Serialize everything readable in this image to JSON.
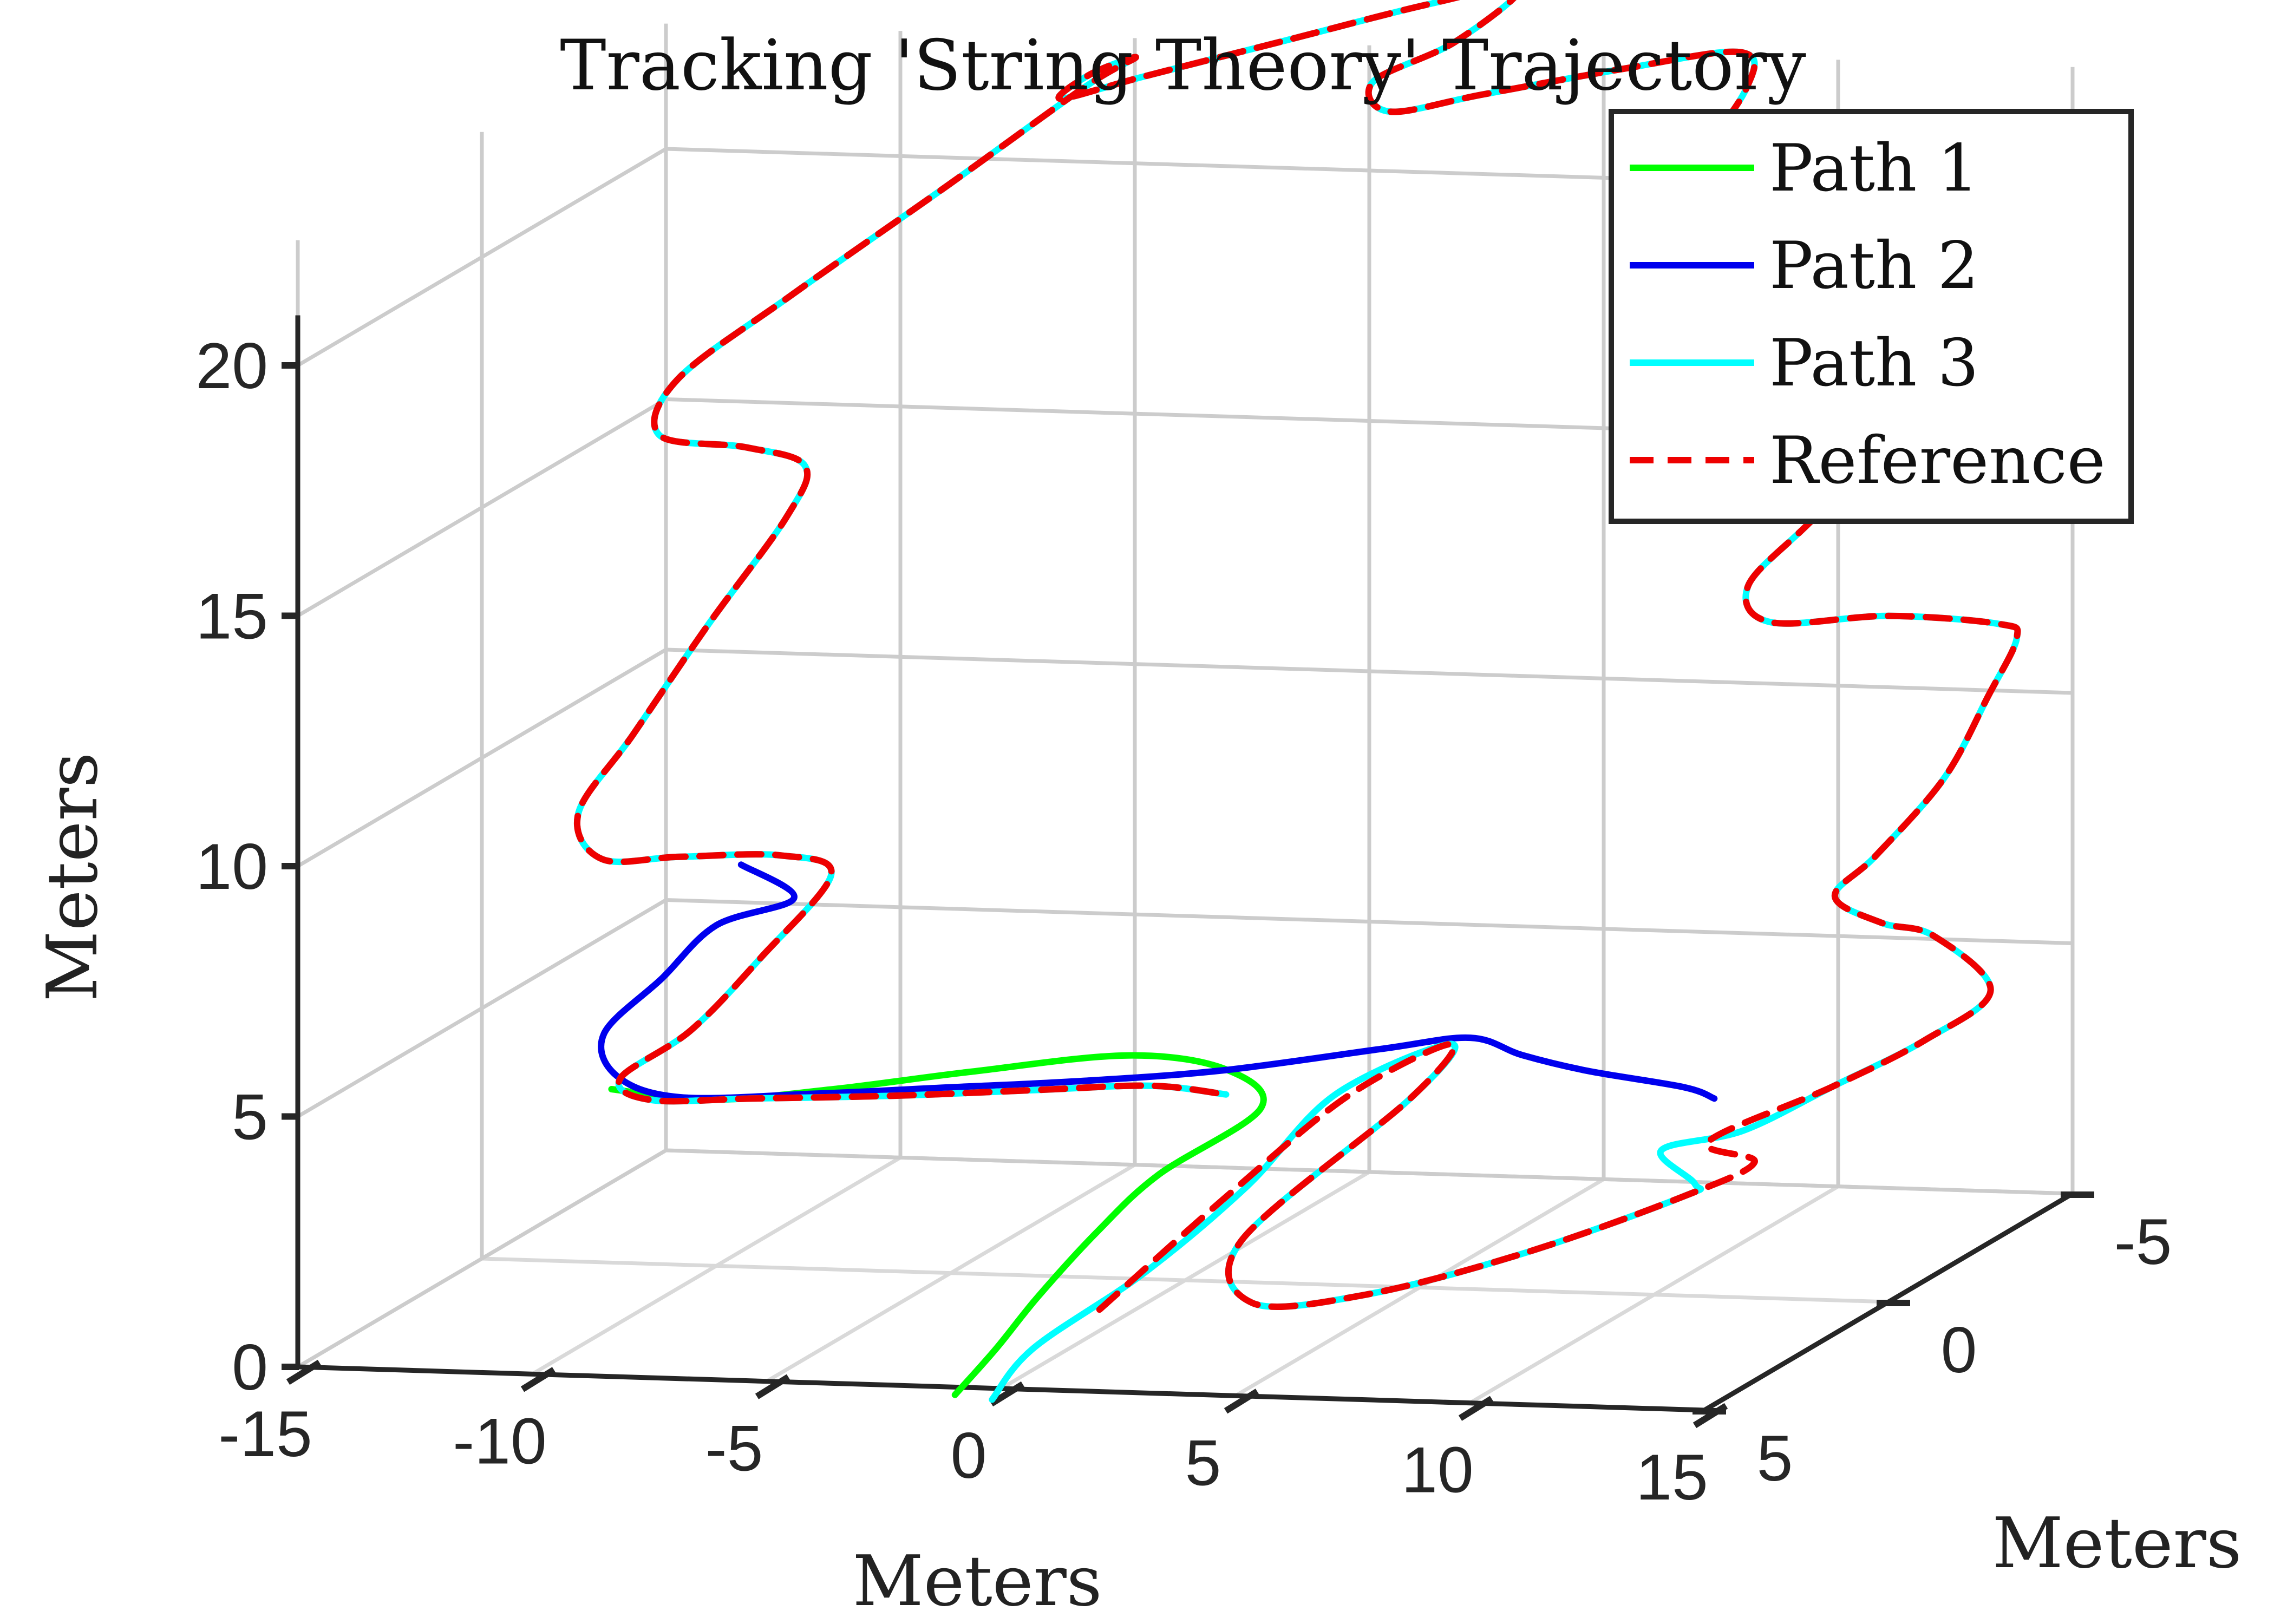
{
  "chart_data": {
    "type": "line",
    "projection": "3d",
    "title": "Tracking 'String Theory' Trajectory",
    "xlabel": "Meters",
    "ylabel": "Meters",
    "zlabel": "Meters",
    "xlim": [
      -15,
      15
    ],
    "ylim": [
      -5,
      5
    ],
    "zlim": [
      0,
      20
    ],
    "x_ticks": [
      -15,
      -10,
      -5,
      0,
      5,
      10,
      15
    ],
    "y_ticks": [
      -5,
      0,
      5
    ],
    "z_ticks": [
      0,
      5,
      10,
      15,
      20
    ],
    "x_tick_labels": [
      "-15",
      "-10",
      "-5",
      "0",
      "5",
      "10",
      "15"
    ],
    "y_tick_labels": [
      "-5",
      "0",
      "5"
    ],
    "z_tick_labels": [
      "0",
      "5",
      "10",
      "15",
      "20"
    ],
    "grid": true,
    "legend_position": "top-right",
    "series": [
      {
        "name": "Path 1",
        "color": "#00ff00",
        "dash": "solid",
        "points": [
          [
            -0.2,
            6,
            0.3
          ],
          [
            -0.1,
            5,
            0.8
          ],
          [
            0,
            4,
            1.4
          ],
          [
            0.5,
            3,
            2.3
          ],
          [
            1,
            2,
            3.0
          ],
          [
            2,
            0.5,
            3.7
          ],
          [
            0.5,
            -0.5,
            4.0
          ],
          [
            -2,
            -1,
            4.0
          ],
          [
            -5,
            -0.5,
            3.8
          ],
          [
            -7.5,
            0,
            3.6
          ],
          [
            -10,
            0.2,
            3.4
          ],
          [
            -12,
            0.3,
            3.6
          ]
        ]
      },
      {
        "name": "Path 2",
        "color": "#0000ee",
        "dash": "solid",
        "points": [
          [
            10.5,
            -1,
            3.5
          ],
          [
            10,
            -0.8,
            3.8
          ],
          [
            8.2,
            -0.5,
            4.2
          ],
          [
            7.2,
            0,
            4.7
          ],
          [
            6.4,
            0.4,
            5.2
          ],
          [
            5,
            1,
            5.2
          ],
          [
            2,
            1.5,
            4.9
          ],
          [
            -1,
            1.5,
            4.6
          ],
          [
            -4,
            1.3,
            4.3
          ],
          [
            -7,
            1.1,
            4.0
          ],
          [
            -10,
            1,
            3.8
          ],
          [
            -11.5,
            0.8,
            4.1
          ],
          [
            -12,
            0.5,
            4.8
          ],
          [
            -11,
            0.2,
            5.8
          ],
          [
            -10,
            0,
            6.8
          ],
          [
            -8.5,
            -0.2,
            7.3
          ],
          [
            -9,
            0.6,
            8.3
          ]
        ]
      },
      {
        "name": "Path 3",
        "color": "#00ffff",
        "dash": "solid",
        "points": [
          [
            0.2,
            5.5,
            0
          ],
          [
            0.3,
            4.5,
            0.6
          ],
          [
            1.5,
            3,
            1.5
          ],
          [
            2.5,
            1.5,
            2.6
          ],
          [
            3.2,
            0,
            3.8
          ],
          [
            4.5,
            -1.5,
            4.2
          ],
          [
            4,
            -1,
            3.3
          ],
          [
            2,
            1,
            1.3
          ],
          [
            3,
            2,
            0.5
          ],
          [
            5,
            1.5,
            0.5
          ],
          [
            8,
            1,
            1.2
          ],
          [
            11,
            0.5,
            2.2
          ],
          [
            11.5,
            0.8,
            2.6
          ],
          [
            10,
            -0.2,
            2.8
          ],
          [
            11.5,
            -0.5,
            3.1
          ],
          [
            13,
            -1,
            3.8
          ],
          [
            15,
            -1,
            4.8
          ],
          [
            16,
            -1.5,
            5.6
          ],
          [
            14,
            -2.5,
            6.2
          ],
          [
            12.5,
            -3,
            6.2
          ],
          [
            11.5,
            -3,
            6.7
          ],
          [
            13,
            -2.2,
            7.9
          ],
          [
            15,
            -1.5,
            9.8
          ],
          [
            16.5,
            -0.8,
            11.8
          ],
          [
            17.5,
            -0.3,
            13.2
          ],
          [
            17.5,
            0.2,
            13.7
          ],
          [
            15,
            0,
            13.7
          ],
          [
            12.5,
            0,
            13.5
          ],
          [
            12,
            0,
            14.2
          ],
          [
            13,
            -0.3,
            15.3
          ],
          [
            14.5,
            -0.8,
            16.8
          ],
          [
            15.5,
            -1.2,
            18.2
          ],
          [
            15,
            -1.5,
            19.4
          ],
          [
            13,
            -1.5,
            19.8
          ],
          [
            9.5,
            -1.5,
            19.7
          ],
          [
            8,
            -1.8,
            20.2
          ],
          [
            9,
            -2.2,
            21.5
          ],
          [
            10,
            -2.5,
            23.0
          ],
          [
            9.5,
            -3,
            23.5
          ],
          [
            7,
            -3,
            23.1
          ],
          [
            4,
            -3,
            22.5
          ],
          [
            2,
            -3,
            22.1
          ],
          [
            1.5,
            -3.2,
            22.6
          ],
          [
            3,
            -3.5,
            23.3
          ],
          [
            4,
            -4,
            24.2
          ],
          [
            2,
            -4,
            23.8
          ],
          [
            -1,
            -4,
            23.0
          ],
          [
            -4,
            -4,
            22.2
          ],
          [
            -5.8,
            -4,
            21.7
          ],
          [
            -5,
            -3.8,
            22.3
          ],
          [
            -3.8,
            -3.5,
            22.8
          ],
          [
            -4.5,
            -3,
            22.4
          ],
          [
            -7,
            -2.5,
            20.6
          ],
          [
            -10,
            -2,
            18.5
          ],
          [
            -12,
            -1.5,
            17.0
          ],
          [
            -12,
            -1,
            16.1
          ],
          [
            -10,
            -0.8,
            16.0
          ],
          [
            -8.5,
            -0.5,
            15.8
          ],
          [
            -8.5,
            0,
            15.0
          ],
          [
            -9.8,
            0.5,
            13.0
          ],
          [
            -11,
            1,
            11.0
          ],
          [
            -12,
            1.2,
            9.5
          ],
          [
            -11.5,
            1.2,
            8.6
          ],
          [
            -10,
            1,
            8.6
          ],
          [
            -8,
            0.8,
            8.6
          ],
          [
            -7,
            0.7,
            8.2
          ],
          [
            -8.5,
            0.7,
            6.5
          ],
          [
            -10,
            0.7,
            5.0
          ],
          [
            -11.5,
            0.7,
            4.0
          ],
          [
            -11,
            0.5,
            3.5
          ],
          [
            -9,
            0.3,
            3.5
          ],
          [
            -6,
            0.2,
            3.6
          ],
          [
            -3,
            0.2,
            3.8
          ],
          [
            -0.5,
            0.3,
            4.0
          ],
          [
            1.5,
            0.8,
            4.1
          ]
        ]
      },
      {
        "name": "Reference",
        "color": "#ee0000",
        "dash": "dashed",
        "points": [
          [
            1,
            3.6,
            1.0
          ],
          [
            2.2,
            1.5,
            2.5
          ],
          [
            3.5,
            0,
            3.8
          ],
          [
            4.5,
            -1.5,
            4.2
          ],
          [
            4,
            -1,
            3.3
          ],
          [
            2,
            1,
            1.3
          ],
          [
            3,
            2,
            0.5
          ],
          [
            5,
            1.5,
            0.5
          ],
          [
            8,
            1,
            1.2
          ],
          [
            11,
            0.5,
            2.2
          ],
          [
            12.3,
            0.2,
            2.8
          ],
          [
            11,
            -0.2,
            3.0
          ],
          [
            13,
            -1,
            3.8
          ],
          [
            15,
            -1,
            4.8
          ],
          [
            16,
            -1.5,
            5.6
          ],
          [
            14,
            -2.5,
            6.2
          ],
          [
            12.5,
            -3,
            6.2
          ],
          [
            11.5,
            -3,
            6.7
          ],
          [
            13,
            -2.2,
            7.9
          ],
          [
            15,
            -1.5,
            9.8
          ],
          [
            16.5,
            -0.8,
            11.8
          ],
          [
            17.5,
            -0.3,
            13.2
          ],
          [
            17.5,
            0.2,
            13.7
          ],
          [
            15,
            0,
            13.7
          ],
          [
            12.5,
            0,
            13.5
          ],
          [
            12,
            0,
            14.2
          ],
          [
            13,
            -0.3,
            15.3
          ],
          [
            14.5,
            -0.8,
            16.8
          ],
          [
            15.5,
            -1.2,
            18.2
          ],
          [
            15,
            -1.5,
            19.4
          ],
          [
            13,
            -1.5,
            19.8
          ],
          [
            9.5,
            -1.5,
            19.7
          ],
          [
            8,
            -1.8,
            20.2
          ],
          [
            9,
            -2.2,
            21.5
          ],
          [
            10,
            -2.5,
            23.0
          ],
          [
            9.5,
            -3,
            23.5
          ],
          [
            7,
            -3,
            23.1
          ],
          [
            4,
            -3,
            22.5
          ],
          [
            2,
            -3,
            22.1
          ],
          [
            1.5,
            -3.2,
            22.6
          ],
          [
            3,
            -3.5,
            23.3
          ],
          [
            4,
            -4,
            24.2
          ],
          [
            2,
            -4,
            23.8
          ],
          [
            -1,
            -4,
            23.0
          ],
          [
            -4,
            -4,
            22.2
          ],
          [
            -5.8,
            -4,
            21.7
          ],
          [
            -5,
            -3.8,
            22.3
          ],
          [
            -3.8,
            -3.5,
            22.8
          ],
          [
            -4.5,
            -3,
            22.4
          ],
          [
            -7,
            -2.5,
            20.6
          ],
          [
            -10,
            -2,
            18.5
          ],
          [
            -12,
            -1.5,
            17.0
          ],
          [
            -12,
            -1,
            16.1
          ],
          [
            -10,
            -0.8,
            16.0
          ],
          [
            -8.5,
            -0.5,
            15.8
          ],
          [
            -8.5,
            0,
            15.0
          ],
          [
            -9.8,
            0.5,
            13.0
          ],
          [
            -11,
            1,
            11.0
          ],
          [
            -12,
            1.2,
            9.5
          ],
          [
            -11.5,
            1.2,
            8.6
          ],
          [
            -10,
            1,
            8.6
          ],
          [
            -8,
            0.8,
            8.6
          ],
          [
            -7,
            0.7,
            8.2
          ],
          [
            -8.5,
            0.7,
            6.5
          ],
          [
            -10,
            0.7,
            5.0
          ],
          [
            -11.5,
            0.7,
            4.0
          ],
          [
            -11,
            0.5,
            3.5
          ],
          [
            -9,
            0.3,
            3.5
          ],
          [
            -6,
            0.2,
            3.6
          ],
          [
            -3,
            0.2,
            3.8
          ],
          [
            -0.5,
            0.3,
            4.0
          ],
          [
            1.5,
            0.8,
            4.1
          ]
        ]
      }
    ]
  }
}
